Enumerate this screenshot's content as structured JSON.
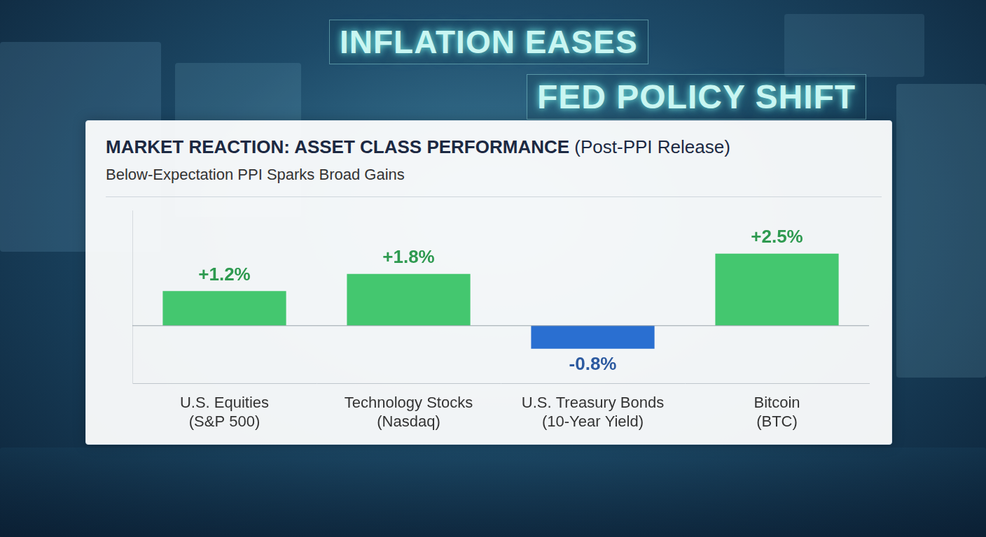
{
  "chart_data": {
    "type": "bar",
    "title": "MARKET REACTION: ASSET CLASS PERFORMANCE (Post-PPI Release)",
    "subtitle": "Below-Expectation PPI Sparks Broad Gains",
    "annotations": [
      "INFLATION EASES",
      "FED POLICY SHIFT"
    ],
    "categories": [
      "U.S. Equities (S&P 500)",
      "Technology Stocks (Nasdaq)",
      "U.S. Treasury Bonds (10-Year Yield)",
      "Bitcoin (BTC)"
    ],
    "values": [
      1.2,
      1.8,
      -0.8,
      2.5
    ],
    "value_labels": [
      "+1.2%",
      "+1.8%",
      "-0.8%",
      "+2.5%"
    ],
    "colors": [
      "#44c76f",
      "#44c76f",
      "#2a6fd1",
      "#44c76f"
    ],
    "ylim": [
      -2,
      4
    ],
    "grid": false,
    "data_labels": true,
    "tick_labels": "x"
  }
}
